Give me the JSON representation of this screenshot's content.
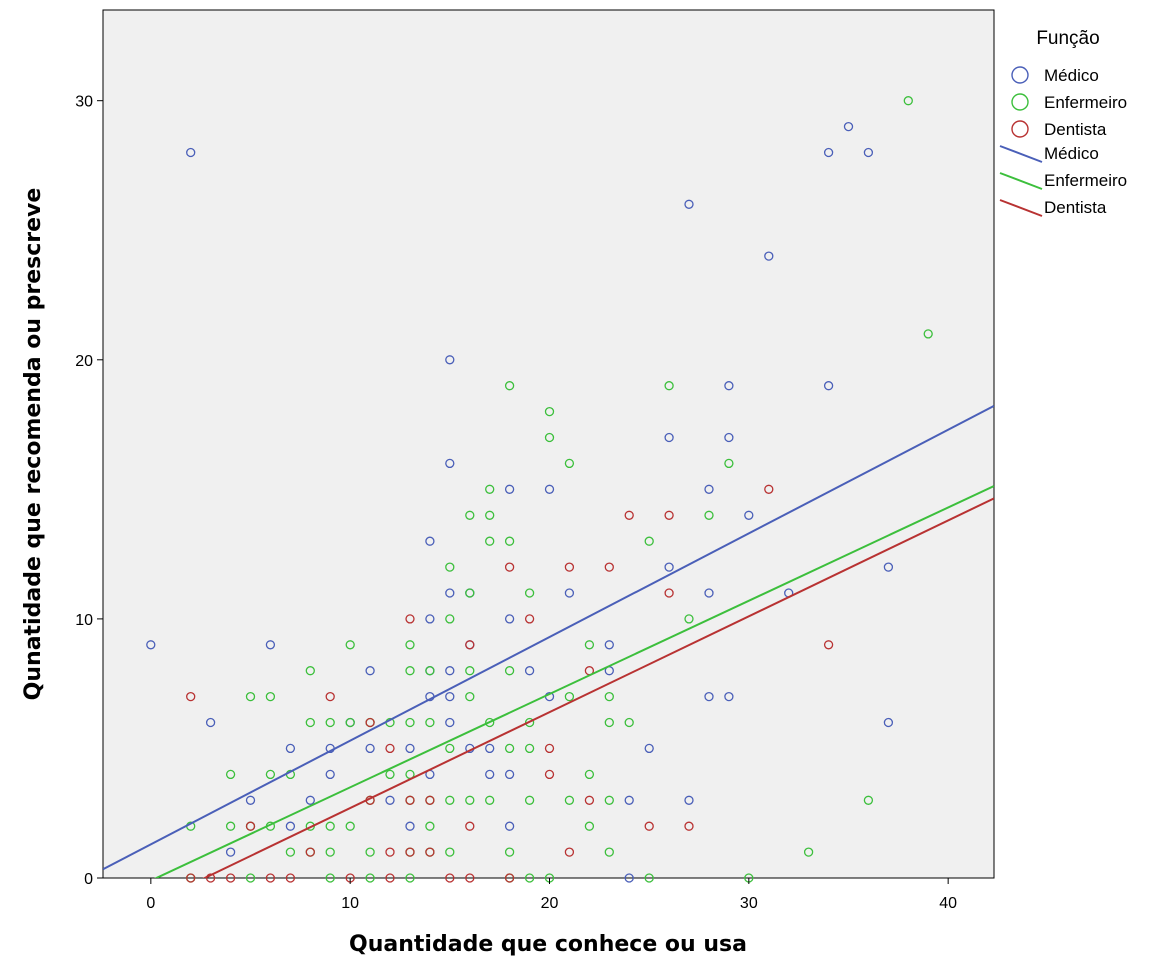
{
  "chart_data": {
    "type": "scatter",
    "title": "",
    "xlabel": "Quantidade que conhece ou usa",
    "ylabel": "Qunatidade que recomenda ou prescreve",
    "xlim": [
      -2.4,
      42.3
    ],
    "ylim": [
      0,
      33.5
    ],
    "x_ticks": [
      0,
      10,
      20,
      30,
      40
    ],
    "y_ticks": [
      0,
      10,
      20,
      30
    ],
    "x_tick_labels": [
      "0",
      "10",
      "20",
      "30",
      "40"
    ],
    "y_tick_labels": [
      "0",
      "10",
      "20",
      "30"
    ],
    "grid": false,
    "legend_position": "top-right-outside",
    "legend_title": "Função",
    "legend_entries": [
      {
        "label": "Médico",
        "kind": "marker",
        "color": "#4a5fb8"
      },
      {
        "label": "Enfermeiro",
        "kind": "marker",
        "color": "#3cbf3c"
      },
      {
        "label": "Dentista",
        "kind": "marker",
        "color": "#b83232"
      },
      {
        "label": "Médico",
        "kind": "line",
        "color": "#4a5fb8"
      },
      {
        "label": "Enfermeiro",
        "kind": "line",
        "color": "#3cbf3c"
      },
      {
        "label": "Dentista",
        "kind": "line",
        "color": "#b83232"
      }
    ],
    "series": [
      {
        "name": "Médico",
        "color": "#4a5fb8",
        "fit_line": {
          "slope": 0.4,
          "intercept": 1.3
        },
        "points": [
          [
            0,
            9
          ],
          [
            2,
            28
          ],
          [
            3,
            6
          ],
          [
            4,
            1
          ],
          [
            5,
            3
          ],
          [
            6,
            9
          ],
          [
            7,
            5
          ],
          [
            7,
            2
          ],
          [
            8,
            3
          ],
          [
            9,
            5
          ],
          [
            9,
            4
          ],
          [
            10,
            6
          ],
          [
            11,
            8
          ],
          [
            11,
            5
          ],
          [
            12,
            3
          ],
          [
            13,
            2
          ],
          [
            13,
            5
          ],
          [
            14,
            13
          ],
          [
            14,
            10
          ],
          [
            14,
            7
          ],
          [
            14,
            4
          ],
          [
            14,
            8
          ],
          [
            15,
            20
          ],
          [
            15,
            16
          ],
          [
            15,
            11
          ],
          [
            15,
            8
          ],
          [
            15,
            6
          ],
          [
            15,
            7
          ],
          [
            16,
            11
          ],
          [
            16,
            5
          ],
          [
            16,
            9
          ],
          [
            17,
            5
          ],
          [
            17,
            4
          ],
          [
            18,
            15
          ],
          [
            18,
            10
          ],
          [
            18,
            4
          ],
          [
            18,
            2
          ],
          [
            19,
            8
          ],
          [
            20,
            15
          ],
          [
            20,
            7
          ],
          [
            21,
            11
          ],
          [
            23,
            9
          ],
          [
            23,
            8
          ],
          [
            24,
            3
          ],
          [
            24,
            0
          ],
          [
            25,
            5
          ],
          [
            26,
            12
          ],
          [
            26,
            17
          ],
          [
            27,
            26
          ],
          [
            27,
            3
          ],
          [
            28,
            15
          ],
          [
            28,
            11
          ],
          [
            28,
            7
          ],
          [
            29,
            19
          ],
          [
            29,
            17
          ],
          [
            29,
            7
          ],
          [
            30,
            14
          ],
          [
            31,
            24
          ],
          [
            32,
            11
          ],
          [
            34,
            28
          ],
          [
            34,
            19
          ],
          [
            35,
            29
          ],
          [
            36,
            28
          ],
          [
            37,
            12
          ],
          [
            37,
            6
          ]
        ]
      },
      {
        "name": "Enfermeiro",
        "color": "#3cbf3c",
        "fit_line": {
          "slope": 0.36,
          "intercept": -0.1
        },
        "points": [
          [
            2,
            2
          ],
          [
            2,
            0
          ],
          [
            4,
            4
          ],
          [
            4,
            2
          ],
          [
            5,
            7
          ],
          [
            5,
            2
          ],
          [
            5,
            0
          ],
          [
            6,
            7
          ],
          [
            6,
            4
          ],
          [
            6,
            2
          ],
          [
            7,
            4
          ],
          [
            7,
            1
          ],
          [
            8,
            8
          ],
          [
            8,
            6
          ],
          [
            8,
            2
          ],
          [
            8,
            1
          ],
          [
            9,
            6
          ],
          [
            9,
            2
          ],
          [
            9,
            1
          ],
          [
            9,
            0
          ],
          [
            10,
            9
          ],
          [
            10,
            6
          ],
          [
            10,
            2
          ],
          [
            11,
            6
          ],
          [
            11,
            3
          ],
          [
            11,
            1
          ],
          [
            11,
            0
          ],
          [
            12,
            6
          ],
          [
            12,
            4
          ],
          [
            13,
            9
          ],
          [
            13,
            8
          ],
          [
            13,
            6
          ],
          [
            13,
            4
          ],
          [
            13,
            3
          ],
          [
            13,
            1
          ],
          [
            13,
            0
          ],
          [
            14,
            8
          ],
          [
            14,
            6
          ],
          [
            14,
            3
          ],
          [
            14,
            2
          ],
          [
            14,
            1
          ],
          [
            15,
            12
          ],
          [
            15,
            10
          ],
          [
            15,
            5
          ],
          [
            15,
            3
          ],
          [
            15,
            1
          ],
          [
            16,
            14
          ],
          [
            16,
            11
          ],
          [
            16,
            8
          ],
          [
            16,
            7
          ],
          [
            16,
            3
          ],
          [
            17,
            15
          ],
          [
            17,
            14
          ],
          [
            17,
            13
          ],
          [
            17,
            6
          ],
          [
            17,
            3
          ],
          [
            18,
            19
          ],
          [
            18,
            13
          ],
          [
            18,
            8
          ],
          [
            18,
            5
          ],
          [
            18,
            1
          ],
          [
            18,
            0
          ],
          [
            19,
            11
          ],
          [
            19,
            6
          ],
          [
            19,
            5
          ],
          [
            19,
            3
          ],
          [
            19,
            0
          ],
          [
            20,
            18
          ],
          [
            20,
            17
          ],
          [
            20,
            0
          ],
          [
            21,
            16
          ],
          [
            21,
            7
          ],
          [
            21,
            3
          ],
          [
            22,
            9
          ],
          [
            22,
            4
          ],
          [
            22,
            2
          ],
          [
            23,
            7
          ],
          [
            23,
            6
          ],
          [
            23,
            3
          ],
          [
            23,
            1
          ],
          [
            24,
            6
          ],
          [
            25,
            13
          ],
          [
            25,
            0
          ],
          [
            26,
            19
          ],
          [
            27,
            10
          ],
          [
            28,
            14
          ],
          [
            29,
            16
          ],
          [
            30,
            0
          ],
          [
            33,
            1
          ],
          [
            36,
            3
          ],
          [
            38,
            30
          ],
          [
            39,
            21
          ]
        ]
      },
      {
        "name": "Dentista",
        "color": "#b83232",
        "fit_line": {
          "slope": 0.37,
          "intercept": -1.0
        },
        "points": [
          [
            2,
            7
          ],
          [
            2,
            0
          ],
          [
            3,
            0
          ],
          [
            4,
            0
          ],
          [
            5,
            2
          ],
          [
            6,
            0
          ],
          [
            7,
            0
          ],
          [
            8,
            1
          ],
          [
            9,
            7
          ],
          [
            10,
            0
          ],
          [
            11,
            6
          ],
          [
            11,
            3
          ],
          [
            12,
            5
          ],
          [
            12,
            1
          ],
          [
            12,
            0
          ],
          [
            13,
            10
          ],
          [
            13,
            3
          ],
          [
            13,
            1
          ],
          [
            14,
            3
          ],
          [
            14,
            1
          ],
          [
            15,
            0
          ],
          [
            16,
            9
          ],
          [
            16,
            2
          ],
          [
            16,
            0
          ],
          [
            18,
            12
          ],
          [
            18,
            0
          ],
          [
            19,
            10
          ],
          [
            20,
            5
          ],
          [
            20,
            4
          ],
          [
            21,
            12
          ],
          [
            21,
            1
          ],
          [
            22,
            8
          ],
          [
            22,
            3
          ],
          [
            23,
            12
          ],
          [
            24,
            14
          ],
          [
            25,
            2
          ],
          [
            26,
            14
          ],
          [
            26,
            11
          ],
          [
            27,
            2
          ],
          [
            31,
            15
          ],
          [
            34,
            9
          ]
        ]
      }
    ]
  }
}
